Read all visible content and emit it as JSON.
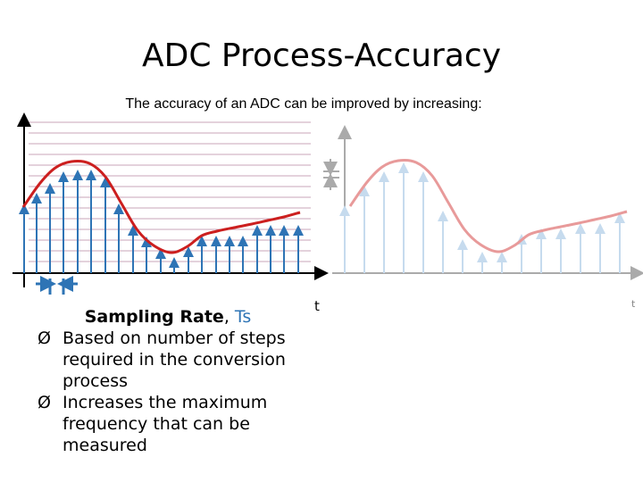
{
  "title": "ADC Process-Accuracy",
  "subtitle": "The accuracy of an ADC can be improved by increasing:",
  "left_axis_label": "t",
  "right_axis_label": "t",
  "heading": {
    "bold": "Sampling Rate",
    "sep": ", ",
    "symbol": "Ts"
  },
  "bullet_glyph": "Ø",
  "bullets": [
    "Based on number of steps required in the conversion process",
    "Increases the maximum frequency that can be measured"
  ],
  "colors": {
    "signal": "#cc1f1f",
    "sample": "#2e74b5",
    "ghost_signal": "#e89a9a",
    "ghost_sample": "#c6dbee",
    "grid": "#c9a6b8"
  }
}
